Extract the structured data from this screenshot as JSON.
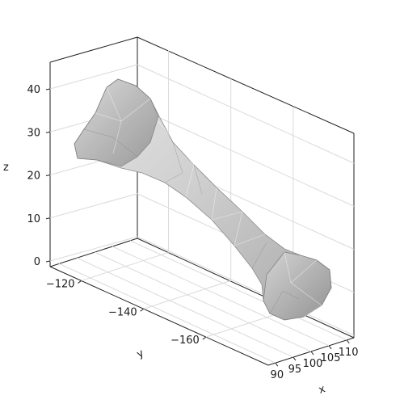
{
  "chart_data": {
    "type": "surface3d",
    "title": "",
    "mesh_color": "#c8c8c8",
    "mesh_edge_color": "#9a9a9a",
    "grid": true,
    "axes": {
      "x": {
        "label": "x",
        "ticks": [
          90,
          95,
          100,
          105,
          110
        ],
        "tick_labels": [
          "90",
          "95",
          "100",
          "105",
          "110"
        ],
        "lim": [
          88,
          112
        ]
      },
      "y": {
        "label": "y",
        "ticks": [
          -120,
          -140,
          -160
        ],
        "tick_labels": [
          "−120",
          "−140",
          "−160"
        ],
        "lim": [
          -110,
          -180
        ]
      },
      "z": {
        "label": "z",
        "ticks": [
          0,
          10,
          20,
          30,
          40
        ],
        "tick_labels": [
          "0",
          "10",
          "20",
          "30",
          "40"
        ],
        "lim": [
          -2,
          46
        ]
      }
    }
  }
}
